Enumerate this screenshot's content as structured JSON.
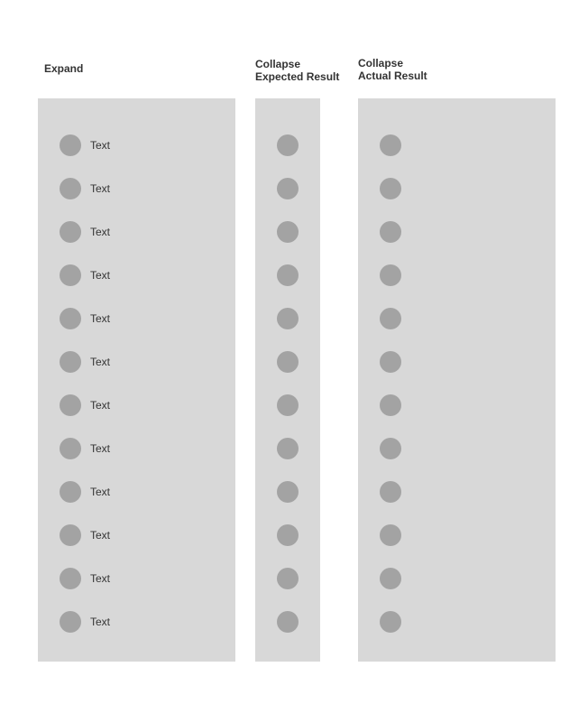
{
  "columns": [
    {
      "id": "expand",
      "title_lines": [
        "Expand"
      ],
      "show_labels": true
    },
    {
      "id": "collapse-expected",
      "title_lines": [
        "Collapse",
        "Expected Result"
      ],
      "show_labels": false
    },
    {
      "id": "collapse-actual",
      "title_lines": [
        "Collapse",
        "Actual Result"
      ],
      "show_labels": false
    }
  ],
  "items": [
    "Text",
    "Text",
    "Text",
    "Text",
    "Text",
    "Text",
    "Text",
    "Text",
    "Text",
    "Text",
    "Text",
    "Text"
  ],
  "colors": {
    "panel": "#d8d8d8",
    "icon": "#a3a3a3",
    "text": "#333333"
  }
}
